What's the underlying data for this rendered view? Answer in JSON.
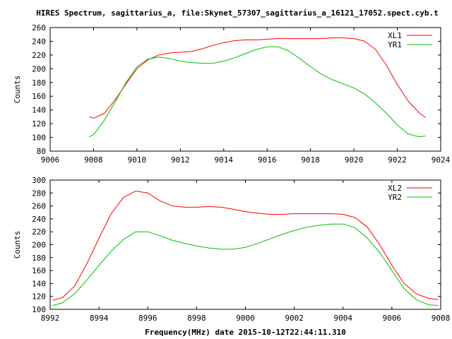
{
  "figure": {
    "title": "HIRES Spectrum, sagittarius_a, file:Skynet_57307_sagittarius_a_16121_17052.spect.cyb.t"
  },
  "chart_data": [
    {
      "type": "line",
      "title": "",
      "xlabel": "",
      "ylabel": "Counts",
      "xlim": [
        9006,
        9024
      ],
      "ylim": [
        80,
        260
      ],
      "xticks": [
        "9006",
        "9008",
        "9010",
        "9012",
        "9014",
        "9016",
        "9018",
        "9020",
        "9022",
        "9024"
      ],
      "yticks": [
        "80",
        "100",
        "120",
        "140",
        "160",
        "180",
        "200",
        "220",
        "240",
        "260"
      ],
      "grid": false,
      "legend": "top-right",
      "series": [
        {
          "name": "XL1",
          "color": "#ff0000",
          "x": [
            9007.8,
            9008.0,
            9008.5,
            9009.0,
            9009.5,
            9010.0,
            9010.5,
            9011.0,
            9011.5,
            9012.0,
            9012.5,
            9013.0,
            9013.5,
            9014.0,
            9014.5,
            9015.0,
            9015.5,
            9016.0,
            9016.5,
            9017.0,
            9017.5,
            9018.0,
            9018.5,
            9019.0,
            9019.5,
            9020.0,
            9020.5,
            9021.0,
            9021.5,
            9022.0,
            9022.5,
            9023.0,
            9023.3
          ],
          "y": [
            130,
            128,
            135,
            155,
            178,
            200,
            213,
            220,
            223,
            224,
            225,
            229,
            234,
            238,
            241,
            242,
            242,
            243,
            244,
            244,
            244,
            244,
            244,
            245,
            245,
            244,
            240,
            228,
            205,
            177,
            153,
            136,
            129
          ]
        },
        {
          "name": "YR1",
          "color": "#00c000",
          "x": [
            9007.8,
            9008.0,
            9008.5,
            9009.0,
            9009.5,
            9010.0,
            9010.5,
            9011.0,
            9011.5,
            9012.0,
            9012.5,
            9013.0,
            9013.5,
            9014.0,
            9014.5,
            9015.0,
            9015.5,
            9016.0,
            9016.5,
            9017.0,
            9017.5,
            9018.0,
            9018.5,
            9019.0,
            9019.5,
            9020.0,
            9020.5,
            9021.0,
            9021.5,
            9022.0,
            9022.5,
            9023.0,
            9023.3
          ],
          "y": [
            101,
            104,
            125,
            152,
            180,
            203,
            214,
            217,
            215,
            211,
            209,
            208,
            208,
            211,
            216,
            222,
            228,
            232,
            232,
            226,
            215,
            203,
            192,
            184,
            178,
            172,
            163,
            150,
            135,
            118,
            105,
            101,
            102
          ]
        }
      ]
    },
    {
      "type": "line",
      "title": "",
      "xlabel": "Frequency(MHz) date 2015-10-12T22:44:11.310",
      "ylabel": "Counts",
      "xlim": [
        8992,
        9008
      ],
      "ylim": [
        100,
        300
      ],
      "xticks": [
        "8992",
        "8994",
        "8996",
        "8998",
        "9000",
        "9002",
        "9004",
        "9006",
        "9008"
      ],
      "yticks": [
        "100",
        "120",
        "140",
        "160",
        "180",
        "200",
        "220",
        "240",
        "260",
        "280",
        "300"
      ],
      "grid": false,
      "legend": "top-right",
      "series": [
        {
          "name": "XL2",
          "color": "#ff0000",
          "x": [
            8992.1,
            8992.5,
            8993.0,
            8993.5,
            8994.0,
            8994.5,
            8995.0,
            8995.5,
            8996.0,
            8996.5,
            8997.0,
            8997.5,
            8998.0,
            8998.5,
            8999.0,
            8999.5,
            9000.0,
            9000.5,
            9001.0,
            9001.5,
            9002.0,
            9002.5,
            9003.0,
            9003.5,
            9004.0,
            9004.5,
            9005.0,
            9005.5,
            9006.0,
            9006.5,
            9007.0,
            9007.5,
            9007.9
          ],
          "y": [
            114,
            118,
            136,
            170,
            210,
            248,
            273,
            283,
            280,
            268,
            260,
            258,
            258,
            259,
            258,
            255,
            251,
            249,
            247,
            247,
            248,
            248,
            248,
            248,
            247,
            242,
            227,
            200,
            168,
            140,
            124,
            117,
            115
          ]
        },
        {
          "name": "YR2",
          "color": "#00c000",
          "x": [
            8992.1,
            8992.5,
            8993.0,
            8993.5,
            8994.0,
            8994.5,
            8995.0,
            8995.5,
            8996.0,
            8996.5,
            8997.0,
            8997.5,
            8998.0,
            8998.5,
            8999.0,
            8999.5,
            9000.0,
            9000.5,
            9001.0,
            9001.5,
            9002.0,
            9002.5,
            9003.0,
            9003.5,
            9004.0,
            9004.5,
            9005.0,
            9005.5,
            9006.0,
            9006.5,
            9007.0,
            9007.5,
            9007.9
          ],
          "y": [
            106,
            110,
            124,
            145,
            168,
            190,
            208,
            220,
            220,
            214,
            207,
            202,
            198,
            195,
            193,
            193,
            196,
            202,
            209,
            216,
            222,
            227,
            230,
            232,
            232,
            226,
            210,
            188,
            160,
            132,
            115,
            107,
            106
          ]
        }
      ]
    }
  ]
}
